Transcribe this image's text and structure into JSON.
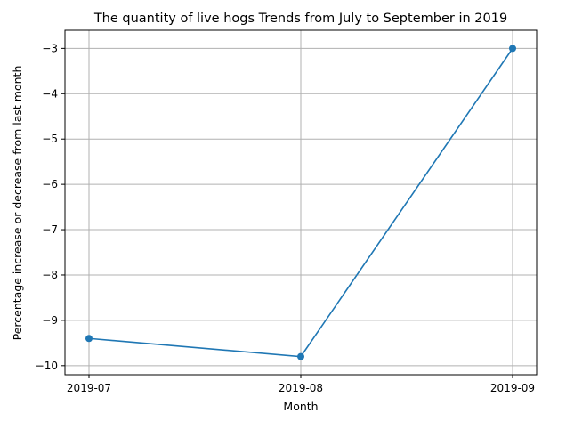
{
  "chart_data": {
    "type": "line",
    "title": "The quantity of live hogs Trends from July to September in 2019",
    "xlabel": "Month",
    "ylabel": "Percentage increase or decrease from last month",
    "categories": [
      "2019-07",
      "2019-08",
      "2019-09"
    ],
    "series": [
      {
        "values": [
          -9.4,
          -9.8,
          -3.0
        ],
        "color": "#1f77b4",
        "markers": true
      }
    ],
    "ylim": [
      -10.2,
      -2.6
    ],
    "yticks": [
      -10,
      -9,
      -8,
      -7,
      -6,
      -5,
      -4,
      -3
    ],
    "ytick_labels": [
      "−10",
      "−9",
      "−8",
      "−7",
      "−6",
      "−5",
      "−4",
      "−3"
    ],
    "grid": true,
    "grid_color": "#b0b0b0",
    "legend": false
  }
}
